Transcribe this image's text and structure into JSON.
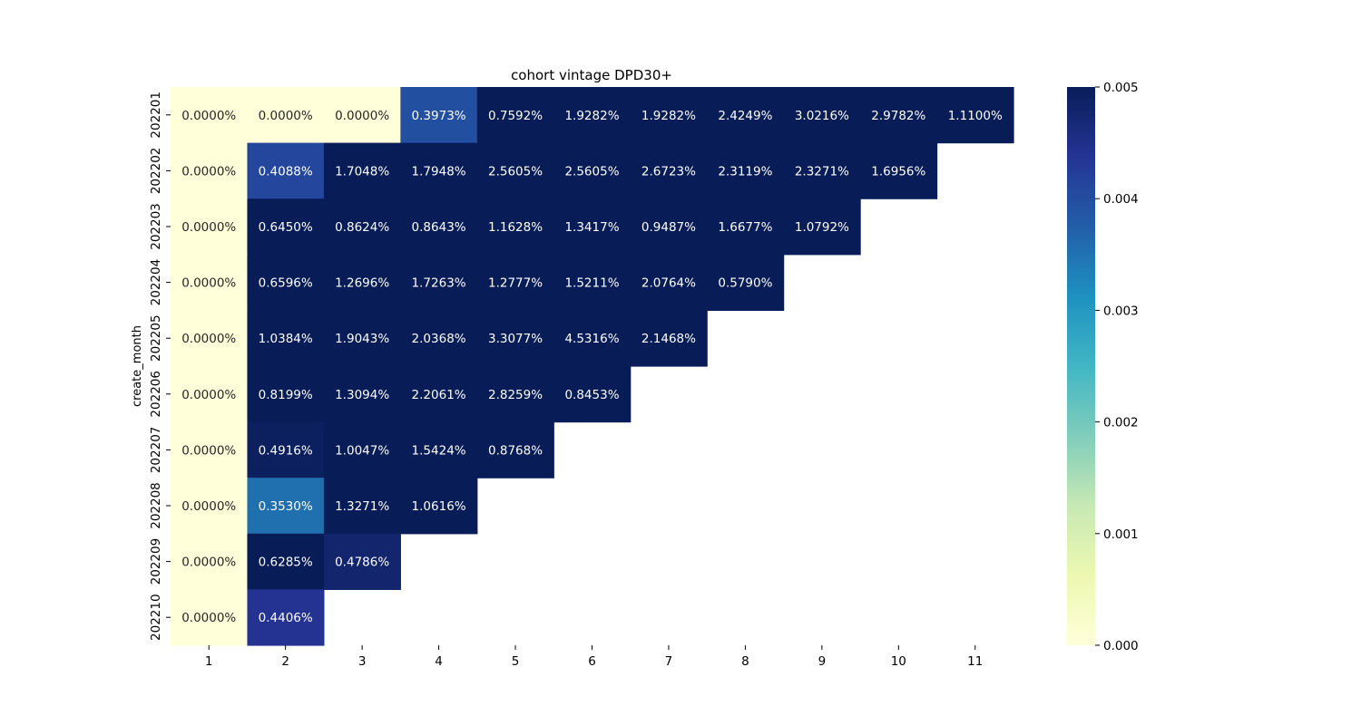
{
  "chart_data": {
    "type": "heatmap",
    "title": "cohort vintage DPD30+",
    "xlabel": "",
    "ylabel": "create_month",
    "x": [
      "1",
      "2",
      "3",
      "4",
      "5",
      "6",
      "7",
      "8",
      "9",
      "10",
      "11"
    ],
    "y": [
      "202201",
      "202202",
      "202203",
      "202204",
      "202205",
      "202206",
      "202207",
      "202208",
      "202209",
      "202210"
    ],
    "values": [
      [
        0.0,
        0.0,
        0.0,
        0.003973,
        0.007592,
        0.019282,
        0.019282,
        0.024249,
        0.030216,
        0.029782,
        0.0111
      ],
      [
        0.0,
        0.004088,
        0.017048,
        0.017948,
        0.025605,
        0.025605,
        0.026723,
        0.023119,
        0.023271,
        0.016956,
        null
      ],
      [
        0.0,
        0.00645,
        0.008624,
        0.008643,
        0.011628,
        0.013417,
        0.009487,
        0.016677,
        0.010792,
        null,
        null
      ],
      [
        0.0,
        0.006596,
        0.012696,
        0.017263,
        0.012777,
        0.015211,
        0.020764,
        0.00579,
        null,
        null,
        null
      ],
      [
        0.0,
        0.010384,
        0.019043,
        0.020368,
        0.033077,
        0.045316,
        0.021468,
        null,
        null,
        null,
        null
      ],
      [
        0.0,
        0.008199,
        0.013094,
        0.022061,
        0.028259,
        0.008453,
        null,
        null,
        null,
        null,
        null
      ],
      [
        0.0,
        0.004916,
        0.010047,
        0.015424,
        0.008768,
        null,
        null,
        null,
        null,
        null,
        null
      ],
      [
        0.0,
        0.00353,
        0.013271,
        0.010616,
        null,
        null,
        null,
        null,
        null,
        null,
        null
      ],
      [
        0.0,
        0.006285,
        0.004786,
        null,
        null,
        null,
        null,
        null,
        null,
        null,
        null
      ],
      [
        0.0,
        0.004406,
        null,
        null,
        null,
        null,
        null,
        null,
        null,
        null,
        null
      ]
    ],
    "annotations": [
      [
        "0.0000%",
        "0.0000%",
        "0.0000%",
        "0.3973%",
        "0.7592%",
        "1.9282%",
        "1.9282%",
        "2.4249%",
        "3.0216%",
        "2.9782%",
        "1.1100%"
      ],
      [
        "0.0000%",
        "0.4088%",
        "1.7048%",
        "1.7948%",
        "2.5605%",
        "2.5605%",
        "2.6723%",
        "2.3119%",
        "2.3271%",
        "1.6956%",
        null
      ],
      [
        "0.0000%",
        "0.6450%",
        "0.8624%",
        "0.8643%",
        "1.1628%",
        "1.3417%",
        "0.9487%",
        "1.6677%",
        "1.0792%",
        null,
        null
      ],
      [
        "0.0000%",
        "0.6596%",
        "1.2696%",
        "1.7263%",
        "1.2777%",
        "1.5211%",
        "2.0764%",
        "0.5790%",
        null,
        null,
        null
      ],
      [
        "0.0000%",
        "1.0384%",
        "1.9043%",
        "2.0368%",
        "3.3077%",
        "4.5316%",
        "2.1468%",
        null,
        null,
        null,
        null
      ],
      [
        "0.0000%",
        "0.8199%",
        "1.3094%",
        "2.2061%",
        "2.8259%",
        "0.8453%",
        null,
        null,
        null,
        null,
        null
      ],
      [
        "0.0000%",
        "0.4916%",
        "1.0047%",
        "1.5424%",
        "0.8768%",
        null,
        null,
        null,
        null,
        null,
        null
      ],
      [
        "0.0000%",
        "0.3530%",
        "1.3271%",
        "1.0616%",
        null,
        null,
        null,
        null,
        null,
        null,
        null
      ],
      [
        "0.0000%",
        "0.6285%",
        "0.4786%",
        null,
        null,
        null,
        null,
        null,
        null,
        null,
        null
      ],
      [
        "0.0000%",
        "0.4406%",
        null,
        null,
        null,
        null,
        null,
        null,
        null,
        null,
        null
      ]
    ],
    "colorbar": {
      "min": 0.0,
      "max": 0.005,
      "ticks": [
        "0.000",
        "0.001",
        "0.002",
        "0.003",
        "0.004",
        "0.005"
      ],
      "colormap": "YlGnBu"
    },
    "colors": {
      "low_annotation_text": "#262626",
      "high_annotation_text": "#ffffff"
    }
  }
}
